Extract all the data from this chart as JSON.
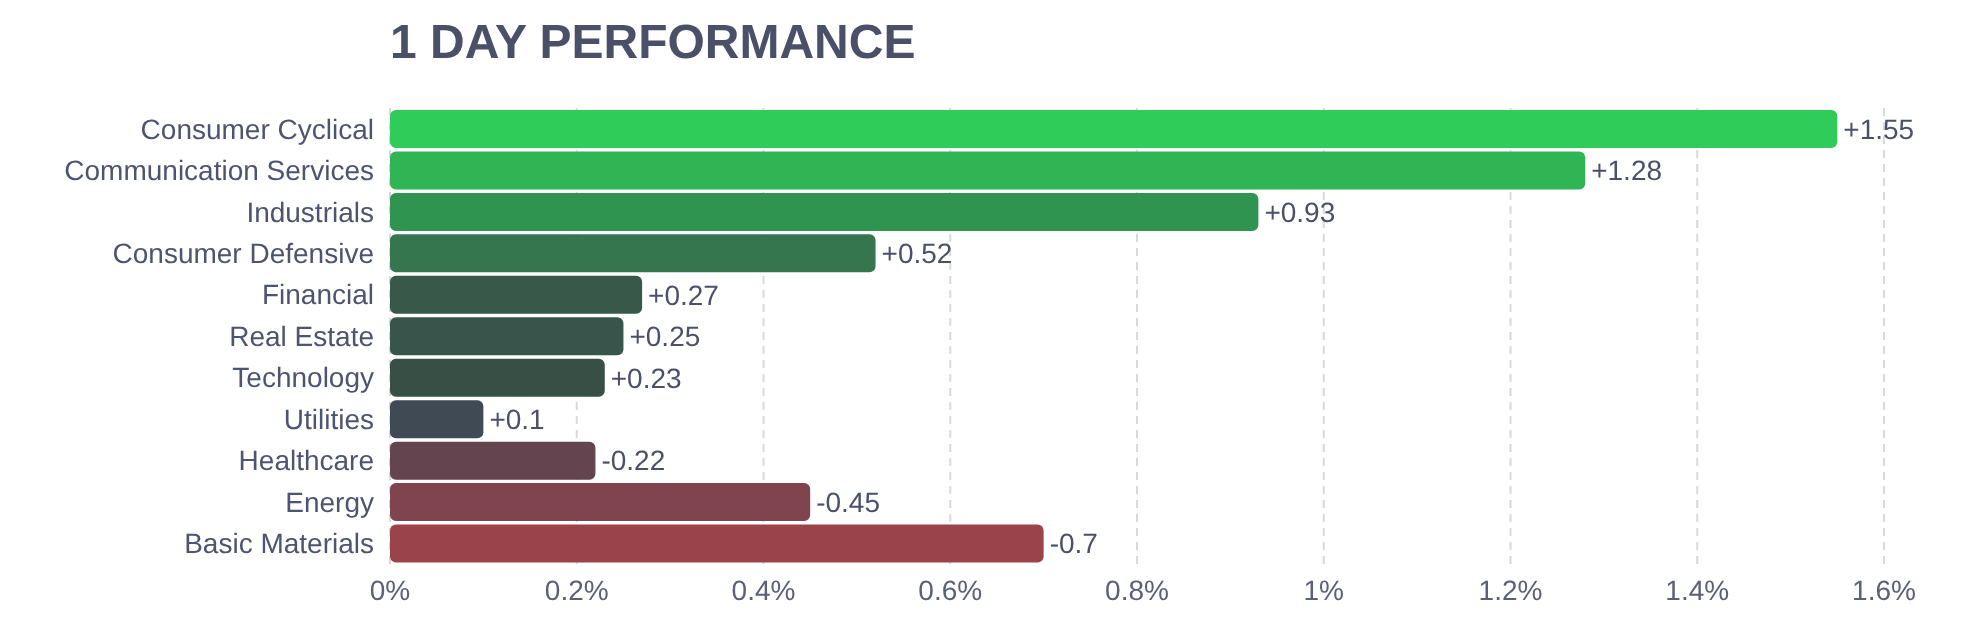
{
  "chart_data": {
    "type": "bar",
    "orientation": "horizontal",
    "title": "1 DAY PERFORMANCE",
    "categories": [
      "Consumer Cyclical",
      "Communication Services",
      "Industrials",
      "Consumer Defensive",
      "Financial",
      "Real Estate",
      "Technology",
      "Utilities",
      "Healthcare",
      "Energy",
      "Basic Materials"
    ],
    "values": [
      1.55,
      1.28,
      0.93,
      0.52,
      0.27,
      0.25,
      0.23,
      0.1,
      -0.22,
      -0.45,
      -0.7
    ],
    "base": [
      0,
      0,
      0,
      0,
      0,
      0,
      0,
      0,
      0.22,
      0.45,
      0.7
    ],
    "value_labels": [
      "+1.55",
      "+1.28",
      "+0.93",
      "+0.52",
      "+0.27",
      "+0.25",
      "+0.23",
      "+0.1",
      "-0.22",
      "-0.45",
      "-0.7"
    ],
    "colors": [
      "#30cc5a",
      "#2fb553",
      "#2f9450",
      "#35764e",
      "#38584a",
      "#38554b",
      "#374f45",
      "#3f4a55",
      "#63444f",
      "#80444f",
      "#9b434b"
    ],
    "xlim": [
      0,
      1.6
    ],
    "xticks": [
      {
        "value": 0,
        "label": "0%"
      },
      {
        "value": 0.2,
        "label": "0.2%"
      },
      {
        "value": 0.4,
        "label": "0.4%"
      },
      {
        "value": 0.6,
        "label": "0.6%"
      },
      {
        "value": 0.8,
        "label": "0.8%"
      },
      {
        "value": 1,
        "label": "1%"
      },
      {
        "value": 1.2,
        "label": "1.2%"
      },
      {
        "value": 1.4,
        "label": "1.4%"
      },
      {
        "value": 1.6,
        "label": "1.6%"
      }
    ],
    "grid": "x",
    "legend": false
  }
}
